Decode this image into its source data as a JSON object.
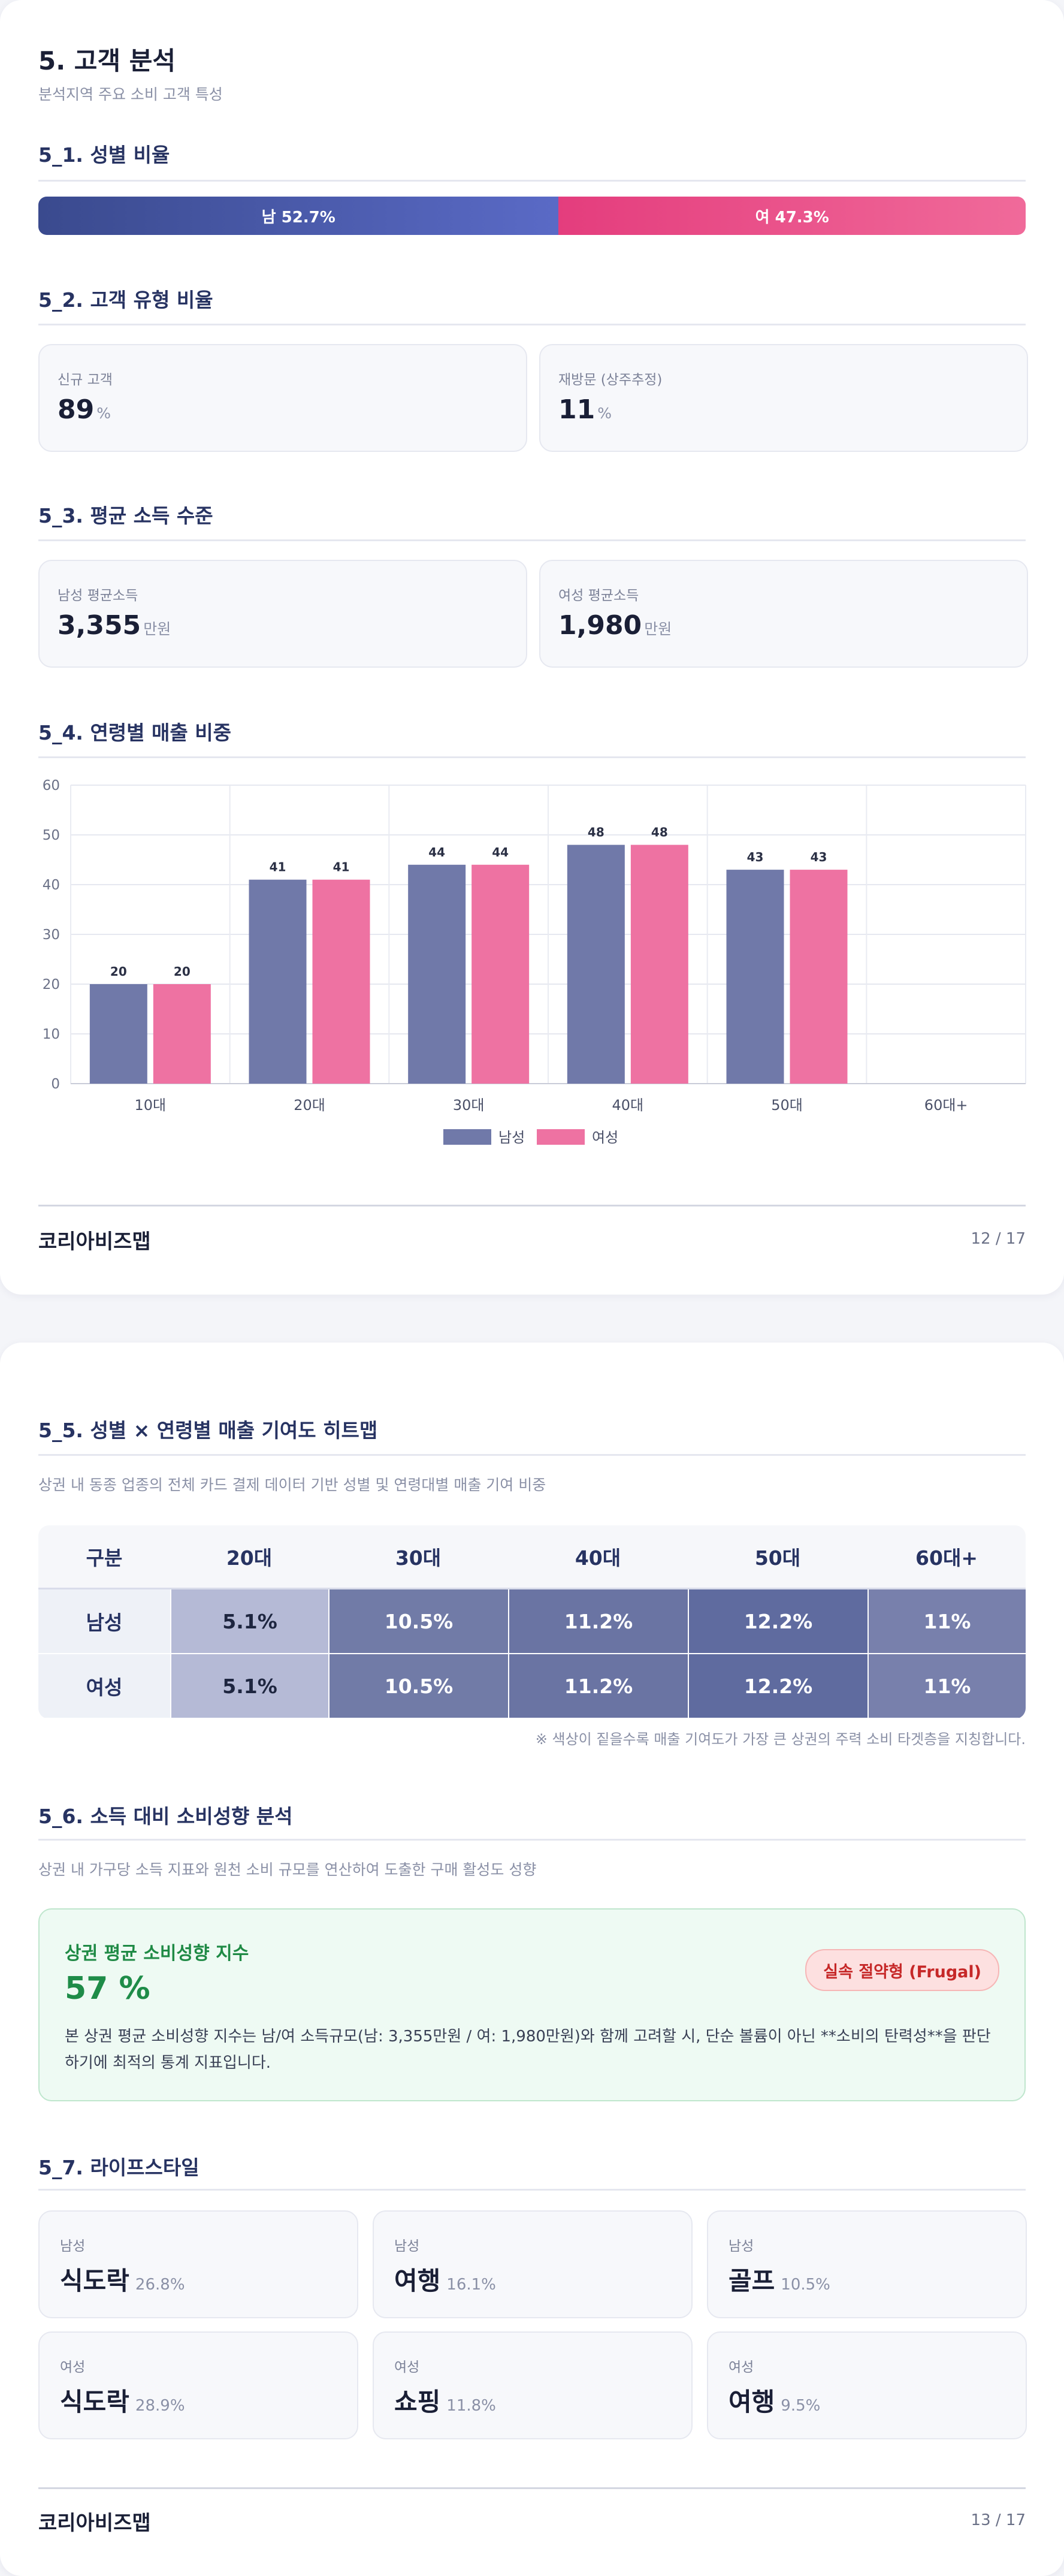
{
  "page1": {
    "title": "5. 고객 분석",
    "subtitle": "분석지역 주요 소비 고객 특성",
    "gender": {
      "heading": "5_1. 성별 비율",
      "male_label": "남 52.7%",
      "female_label": "여 47.3%",
      "male_share": 52.7,
      "female_share": 47.3,
      "male_color": "#4a5aab",
      "female_color": "#ea4a87"
    },
    "customer_type": {
      "heading": "5_2. 고객 유형 비율",
      "cards": [
        {
          "label": "신규 고객",
          "value": "89",
          "unit": "%"
        },
        {
          "label": "재방문 (상주추정)",
          "value": "11",
          "unit": "%"
        }
      ]
    },
    "income": {
      "heading": "5_3. 평균 소득 수준",
      "cards": [
        {
          "label": "남성 평균소득",
          "value": "3,355",
          "unit": "만원"
        },
        {
          "label": "여성 평균소득",
          "value": "1,980",
          "unit": "만원"
        }
      ]
    },
    "age_chart_heading": "5_4. 연령별 매출 비중",
    "footer": {
      "brand": "코리아비즈맵",
      "page": "12 / 17"
    }
  },
  "chart_data": {
    "type": "bar",
    "categories": [
      "10대",
      "20대",
      "30대",
      "40대",
      "50대",
      "60대+"
    ],
    "series": [
      {
        "name": "남성",
        "values": [
          20,
          41,
          44,
          48,
          43,
          null
        ],
        "color": "#7079a9"
      },
      {
        "name": "여성",
        "values": [
          20,
          41,
          44,
          48,
          43,
          null
        ],
        "color": "#ee72a2"
      }
    ],
    "ylim": [
      0,
      60
    ],
    "yticks": [
      0,
      10,
      20,
      30,
      40,
      50,
      60
    ],
    "title": "",
    "xlabel": "",
    "ylabel": "",
    "grid": true,
    "legend": "bottom-center"
  },
  "page2": {
    "heatmap": {
      "heading": "5_5. 성별 × 연령별 매출 기여도 히트맵",
      "description": "상권 내 동종 업종의 전체 카드 결제 데이터 기반 성별 및 연령대별 매출 기여 비중",
      "columns": [
        "구분",
        "20대",
        "30대",
        "40대",
        "50대",
        "60대+"
      ],
      "rows": [
        {
          "label": "남성",
          "cells": [
            "5.1%",
            "10.5%",
            "11.2%",
            "12.2%",
            "11%"
          ]
        },
        {
          "label": "여성",
          "cells": [
            "5.1%",
            "10.5%",
            "11.2%",
            "12.2%",
            "11%"
          ]
        }
      ],
      "note": "※ 색상이 짙을수록 매출 기여도가 가장 큰 상권의 주력 소비 타겟층을 지칭합니다."
    },
    "spending": {
      "heading": "5_6. 소득 대비 소비성향 분석",
      "description": "상권 내 가구당 소득 지표와 원천 소비 규모를 연산하여 도출한 구매 활성도 성향",
      "index_title": "상권 평균 소비성향 지수",
      "index_value": "57 %",
      "badge": "실속 절약형 (Frugal)",
      "text": "본 상권 평균 소비성향 지수는 남/여 소득규모(남: 3,355만원 / 여: 1,980만원)와 함께 고려할 시, 단순 볼륨이 아닌 **소비의 탄력성**을 판단하기에 최적의 통계 지표입니다."
    },
    "lifestyle": {
      "heading": "5_7. 라이프스타일",
      "cards": [
        {
          "gender": "남성",
          "name": "식도락",
          "pct": "26.8%"
        },
        {
          "gender": "남성",
          "name": "여행",
          "pct": "16.1%"
        },
        {
          "gender": "남성",
          "name": "골프",
          "pct": "10.5%"
        },
        {
          "gender": "여성",
          "name": "식도락",
          "pct": "28.9%"
        },
        {
          "gender": "여성",
          "name": "쇼핑",
          "pct": "11.8%"
        },
        {
          "gender": "여성",
          "name": "여행",
          "pct": "9.5%"
        }
      ]
    },
    "footer": {
      "brand": "코리아비즈맵",
      "page": "13 / 17"
    }
  }
}
